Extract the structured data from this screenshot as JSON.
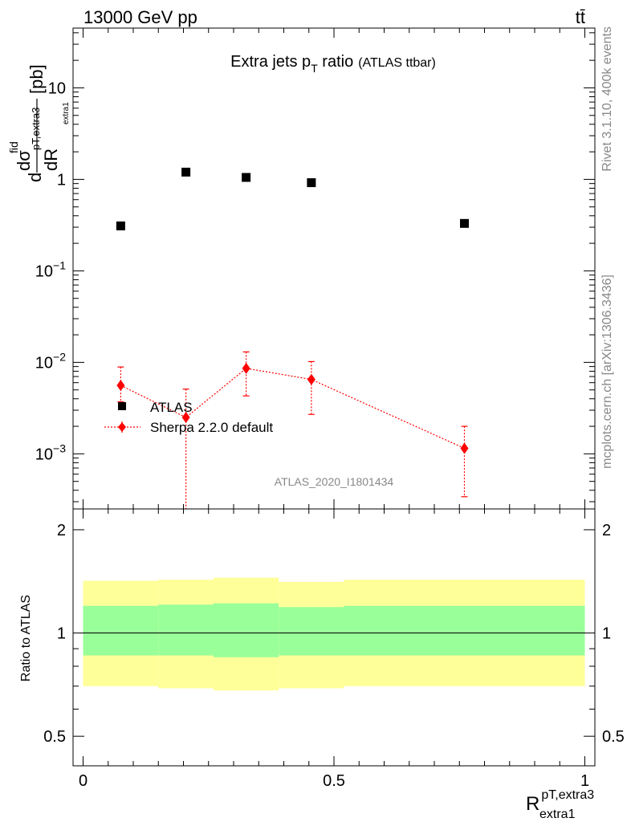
{
  "header": {
    "energy_label": "13000 GeV pp",
    "process_label": "tt̄"
  },
  "side_labels": {
    "rivet": "Rivet 3.1.10,  400k events",
    "mcplots": "mcplots.cern.ch [arXiv:1306.3436]"
  },
  "chart_data": [
    {
      "type": "scatter",
      "title": "Extra jets p_T ratio",
      "title_parts": {
        "main": "Extra jets p",
        "sub": "T",
        "tail": " ratio",
        "note": "(ATLAS ttbar)"
      },
      "ylabel": "dσ^fid / dR^{pT,extra3}_{extra1} [pb]",
      "ylabel_parts": {
        "d": "d",
        "sigma": "dσ",
        "fid": "fid",
        "dR": "dR",
        "sub": "pT,extra3",
        "subsub": "extra1",
        "unit": "[pb]"
      },
      "yscale": "log",
      "ylim": [
        0.00025,
        45
      ],
      "xlim": [
        -0.02,
        1.02
      ],
      "analysis_id": "ATLAS_2020_I1801434",
      "y_ticks": [
        {
          "v": 0.001,
          "base": "10",
          "exp": "−3"
        },
        {
          "v": 0.01,
          "base": "10",
          "exp": "−2"
        },
        {
          "v": 0.1,
          "base": "10",
          "exp": "−1"
        },
        {
          "v": 1,
          "base": "1",
          "exp": ""
        },
        {
          "v": 10,
          "base": "10",
          "exp": ""
        }
      ],
      "legend_position": "center-left",
      "series": [
        {
          "name": "ATLAS",
          "marker": "square",
          "color": "#000000",
          "x": [
            0.075,
            0.205,
            0.325,
            0.455,
            0.76
          ],
          "y": [
            0.31,
            1.2,
            1.05,
            0.92,
            0.33
          ]
        },
        {
          "name": "Sherpa 2.2.0 default",
          "marker": "diamond",
          "line": "dotted",
          "color": "#ff0000",
          "x": [
            0.075,
            0.205,
            0.325,
            0.455,
            0.76
          ],
          "y": [
            0.0056,
            0.0025,
            0.0086,
            0.0065,
            0.00115
          ],
          "y_err_low": [
            0.0037,
            0.00025,
            0.0043,
            0.0027,
            0.00034
          ],
          "y_err_high": [
            0.0089,
            0.0051,
            0.013,
            0.0102,
            0.002
          ]
        }
      ]
    },
    {
      "type": "area",
      "ylabel": "Ratio to ATLAS",
      "xlabel": "R^{pT,extra3}_{extra1}",
      "xlabel_parts": {
        "R": "R",
        "sup": "pT,extra3",
        "sub": "extra1"
      },
      "xlim": [
        -0.02,
        1.02
      ],
      "ylim": [
        0.41,
        2.3
      ],
      "yscale": "log",
      "y_ticks": [
        0.5,
        1,
        2
      ],
      "y_tick_labels": [
        "0.5",
        "1",
        "2"
      ],
      "x_ticks": [
        0,
        0.5,
        1
      ],
      "x_tick_labels": [
        "0",
        "0.5",
        "1"
      ],
      "bins": [
        0,
        0.15,
        0.26,
        0.39,
        0.52,
        1.0
      ],
      "yellow_band": {
        "color": "#ffff99",
        "low": [
          0.7,
          0.69,
          0.68,
          0.69,
          0.7
        ],
        "high": [
          1.42,
          1.43,
          1.45,
          1.41,
          1.43
        ]
      },
      "green_band": {
        "color": "#99ff99",
        "low": [
          0.86,
          0.86,
          0.85,
          0.86,
          0.86
        ],
        "high": [
          1.2,
          1.21,
          1.22,
          1.19,
          1.2
        ]
      },
      "reference_value": 1
    }
  ]
}
